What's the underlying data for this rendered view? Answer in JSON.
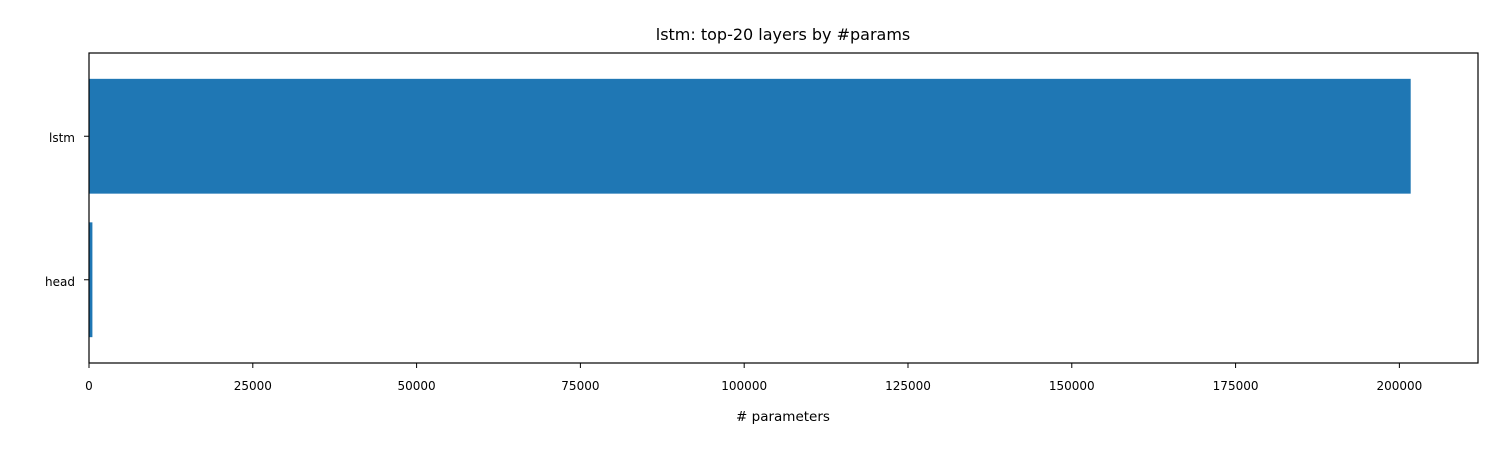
{
  "chart_data": {
    "type": "bar",
    "orientation": "horizontal",
    "title": "lstm: top-20 layers by #params",
    "xlabel": "# parameters",
    "ylabel": "",
    "categories": [
      "lstm",
      "head"
    ],
    "values": [
      201728,
      520
    ],
    "xlim": [
      0,
      212000
    ],
    "xticks": [
      0,
      25000,
      50000,
      75000,
      100000,
      125000,
      150000,
      175000,
      200000
    ],
    "xtick_labels": [
      "0",
      "25000",
      "50000",
      "75000",
      "100000",
      "125000",
      "150000",
      "175000",
      "200000"
    ],
    "bar_color": "#1f77b4",
    "grid": false,
    "legend": "none"
  }
}
